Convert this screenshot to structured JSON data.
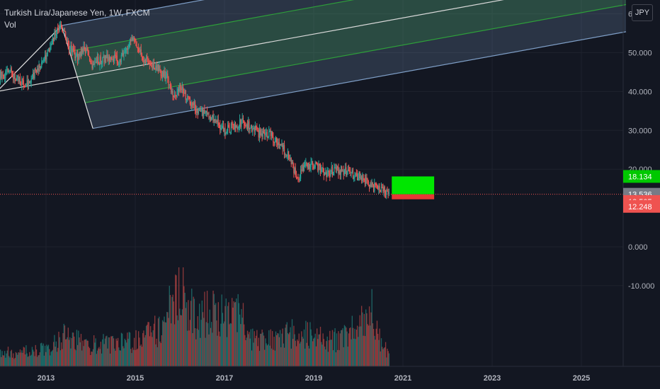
{
  "header": {
    "title": "Turkish Lira/Japanese Yen, 1W, FXCM",
    "indicator": "Vol",
    "currency_button": "JPY"
  },
  "colors": {
    "background": "#131722",
    "up": "#26a69a",
    "down": "#ef5350",
    "channel_outer": "#7e9ec6",
    "channel_inner": "#2e9e3a",
    "median": "#d9d9d9",
    "current_price_line": "#ef5350"
  },
  "chart_data": {
    "type": "candlestick",
    "symbol": "TRY/JPY",
    "interval": "1W",
    "x_ticks": [
      "2013",
      "2015",
      "2017",
      "2019",
      "2021",
      "2023",
      "2025"
    ],
    "y_ticks": [
      "60.000",
      "50.000",
      "40.000",
      "30.000",
      "20.000",
      "0.000",
      "-10.000"
    ],
    "ylim": [
      -15,
      75
    ],
    "price_labels": [
      {
        "value": 18.134,
        "text": "18.134",
        "color": "#00c800"
      },
      {
        "value": 13.536,
        "text": "13.536",
        "color": "#787b86"
      },
      {
        "value": 13.505,
        "text": "13.505",
        "color": "#ef5350"
      },
      {
        "value": 12.248,
        "text": "12.248",
        "color": "#ef5350"
      }
    ],
    "price_path": [
      [
        2011.9,
        44
      ],
      [
        2012.2,
        45
      ],
      [
        2012.4,
        43
      ],
      [
        2012.6,
        42
      ],
      [
        2012.8,
        46
      ],
      [
        2013.0,
        49
      ],
      [
        2013.2,
        55
      ],
      [
        2013.35,
        57
      ],
      [
        2013.5,
        52
      ],
      [
        2013.7,
        49
      ],
      [
        2013.9,
        51
      ],
      [
        2014.0,
        47
      ],
      [
        2014.2,
        48
      ],
      [
        2014.4,
        49
      ],
      [
        2014.6,
        48
      ],
      [
        2014.8,
        50
      ],
      [
        2014.95,
        54
      ],
      [
        2015.1,
        50
      ],
      [
        2015.3,
        47
      ],
      [
        2015.5,
        46
      ],
      [
        2015.7,
        44
      ],
      [
        2015.85,
        39
      ],
      [
        2016.0,
        41
      ],
      [
        2016.2,
        38
      ],
      [
        2016.4,
        35
      ],
      [
        2016.6,
        34
      ],
      [
        2016.8,
        32
      ],
      [
        2017.0,
        30
      ],
      [
        2017.2,
        31
      ],
      [
        2017.4,
        32
      ],
      [
        2017.6,
        31
      ],
      [
        2017.8,
        29
      ],
      [
        2018.0,
        29
      ],
      [
        2018.2,
        27
      ],
      [
        2018.4,
        24
      ],
      [
        2018.55,
        20
      ],
      [
        2018.65,
        17
      ],
      [
        2018.75,
        20
      ],
      [
        2018.9,
        21
      ],
      [
        2019.1,
        20.5
      ],
      [
        2019.3,
        19
      ],
      [
        2019.5,
        20
      ],
      [
        2019.7,
        19.5
      ],
      [
        2019.9,
        18.5
      ],
      [
        2020.1,
        18
      ],
      [
        2020.3,
        15.5
      ],
      [
        2020.5,
        15
      ],
      [
        2020.7,
        13.5
      ]
    ],
    "volume_path": [
      [
        2011.9,
        0.15
      ],
      [
        2013.0,
        0.2
      ],
      [
        2013.4,
        0.35
      ],
      [
        2014.0,
        0.25
      ],
      [
        2015.0,
        0.3
      ],
      [
        2015.6,
        0.45
      ],
      [
        2016.0,
        0.95
      ],
      [
        2016.3,
        0.6
      ],
      [
        2016.8,
        0.65
      ],
      [
        2017.0,
        0.55
      ],
      [
        2017.2,
        0.75
      ],
      [
        2017.6,
        0.35
      ],
      [
        2018.0,
        0.3
      ],
      [
        2018.6,
        0.4
      ],
      [
        2019.0,
        0.35
      ],
      [
        2019.6,
        0.3
      ],
      [
        2020.2,
        0.55
      ],
      [
        2020.3,
        0.75
      ],
      [
        2020.5,
        0.25
      ],
      [
        2020.75,
        0.15
      ]
    ],
    "pitchfork": {
      "pivot_a": [
        2011.9,
        40
      ],
      "pivot_b": [
        2013.35,
        57
      ],
      "pivot_c": [
        2014.05,
        30.5
      ],
      "end_x": 2026.0
    },
    "position_box": {
      "x_start": 2020.75,
      "x_end": 2021.7,
      "entry": 13.536,
      "target": 18.134,
      "stop": 12.248
    }
  }
}
